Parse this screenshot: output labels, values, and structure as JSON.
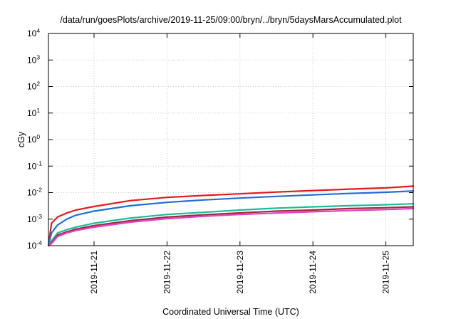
{
  "chart_data": {
    "type": "line",
    "title": "/data/run/goesPlots/archive/2019-11-25/09:00/bryn/../bryn/5daysMarsAccumulated.plot",
    "xlabel": "Coordinated Universal Time (UTC)",
    "ylabel": "cGy",
    "y_scale": "log",
    "ylim": [
      0.0001,
      10000
    ],
    "xlim": [
      "2019-11-20T09:00",
      "2019-11-25T09:00"
    ],
    "grid": true,
    "legend": "none",
    "y_ticks": [
      {
        "base": "10",
        "exp": "4"
      },
      {
        "base": "10",
        "exp": "3"
      },
      {
        "base": "10",
        "exp": "2"
      },
      {
        "base": "10",
        "exp": "1"
      },
      {
        "base": "10",
        "exp": "0"
      },
      {
        "base": "10",
        "exp": "-1"
      },
      {
        "base": "10",
        "exp": "-2"
      },
      {
        "base": "10",
        "exp": "-3"
      },
      {
        "base": "10",
        "exp": "-4"
      }
    ],
    "x_ticks": [
      "2019-11-21",
      "2019-11-22",
      "2019-11-23",
      "2019-11-24",
      "2019-11-25"
    ],
    "x": [
      "2019-11-20T09:00",
      "2019-11-20T10:00",
      "2019-11-20T12:00",
      "2019-11-20T15:00",
      "2019-11-20T18:00",
      "2019-11-21T00:00",
      "2019-11-21T12:00",
      "2019-11-22T00:00",
      "2019-11-22T12:00",
      "2019-11-23T00:00",
      "2019-11-23T12:00",
      "2019-11-24T00:00",
      "2019-11-24T12:00",
      "2019-11-25T00:00",
      "2019-11-25T09:00"
    ],
    "series": [
      {
        "color": "#e41a1c",
        "values": [
          0.0001,
          0.0007,
          0.0012,
          0.0017,
          0.0022,
          0.003,
          0.005,
          0.0066,
          0.0078,
          0.009,
          0.0105,
          0.012,
          0.0135,
          0.015,
          0.0175
        ]
      },
      {
        "color": "#1f6fd6",
        "values": [
          0.0001,
          0.0003,
          0.0006,
          0.001,
          0.0014,
          0.002,
          0.0032,
          0.0043,
          0.0053,
          0.0062,
          0.0072,
          0.0082,
          0.0093,
          0.0103,
          0.0115
        ]
      },
      {
        "color": "#1abc9c",
        "values": [
          0.0001,
          0.00015,
          0.0003,
          0.0004,
          0.0005,
          0.0007,
          0.0011,
          0.0015,
          0.0018,
          0.0022,
          0.0026,
          0.0029,
          0.0032,
          0.0035,
          0.0038
        ]
      },
      {
        "color": "#9b2b3a",
        "values": [
          0.0001,
          0.00013,
          0.00025,
          0.00033,
          0.00042,
          0.00057,
          0.00088,
          0.0012,
          0.00145,
          0.00172,
          0.002,
          0.0022,
          0.0025,
          0.0027,
          0.0029
        ]
      },
      {
        "color": "#e83ec8",
        "values": [
          0.0001,
          0.00012,
          0.00022,
          0.0003,
          0.00037,
          0.0005,
          0.00077,
          0.00105,
          0.00128,
          0.0015,
          0.0017,
          0.0019,
          0.0021,
          0.0023,
          0.0025
        ]
      }
    ]
  }
}
